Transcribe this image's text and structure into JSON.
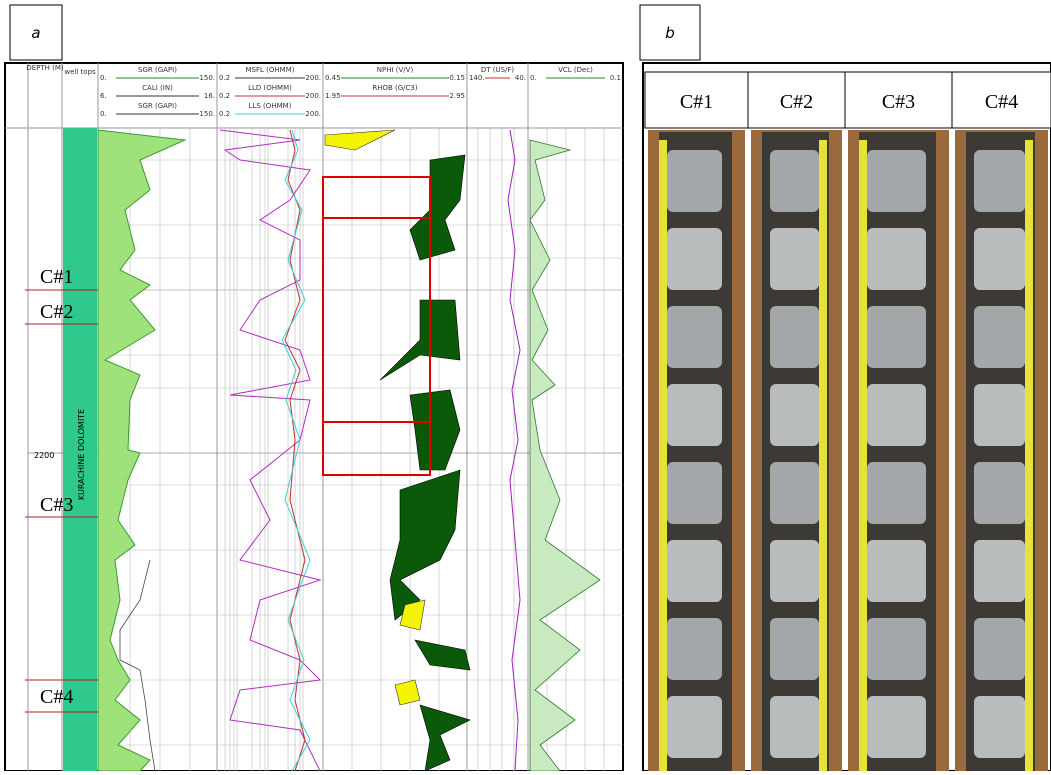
{
  "panel_a": {
    "label": "a",
    "depth_header": "DEPTH (M)",
    "well_tops_header": "well tops",
    "tracks": [
      {
        "curves": [
          {
            "name": "SGR (GAPI)",
            "left": "0.",
            "right": "150."
          },
          {
            "name": "CALI (IN)",
            "left": "6.",
            "right": "16."
          },
          {
            "name": "SGR (GAPI)",
            "left": "0.",
            "right": "150."
          }
        ]
      },
      {
        "curves": [
          {
            "name": "MSFL (OHMM)",
            "left": "0.2",
            "right": "200."
          },
          {
            "name": "LLD (OHMM)",
            "left": "0.2",
            "right": "200."
          },
          {
            "name": "LLS (OHMM)",
            "left": "0.2",
            "right": "200."
          }
        ]
      },
      {
        "curves": [
          {
            "name": "NPHI (V/V)",
            "left": "0.45",
            "right": "-0.15"
          },
          {
            "name": "RHOB (G/C3)",
            "left": "1.95",
            "right": "2.95"
          }
        ]
      },
      {
        "curves": [
          {
            "name": "DT (US/F)",
            "left": "140.",
            "right": "40."
          }
        ]
      },
      {
        "curves": [
          {
            "name": "VCL (Dec)",
            "left": "0.",
            "right": "0.1"
          }
        ]
      }
    ],
    "depth_label": "2200",
    "formation": "KURACHINE DOLOMITE",
    "cores": [
      "C#1",
      "C#2",
      "C#3",
      "C#4"
    ]
  },
  "panel_b": {
    "label": "b",
    "columns": [
      "C#1",
      "C#2",
      "C#3",
      "C#4"
    ]
  }
}
